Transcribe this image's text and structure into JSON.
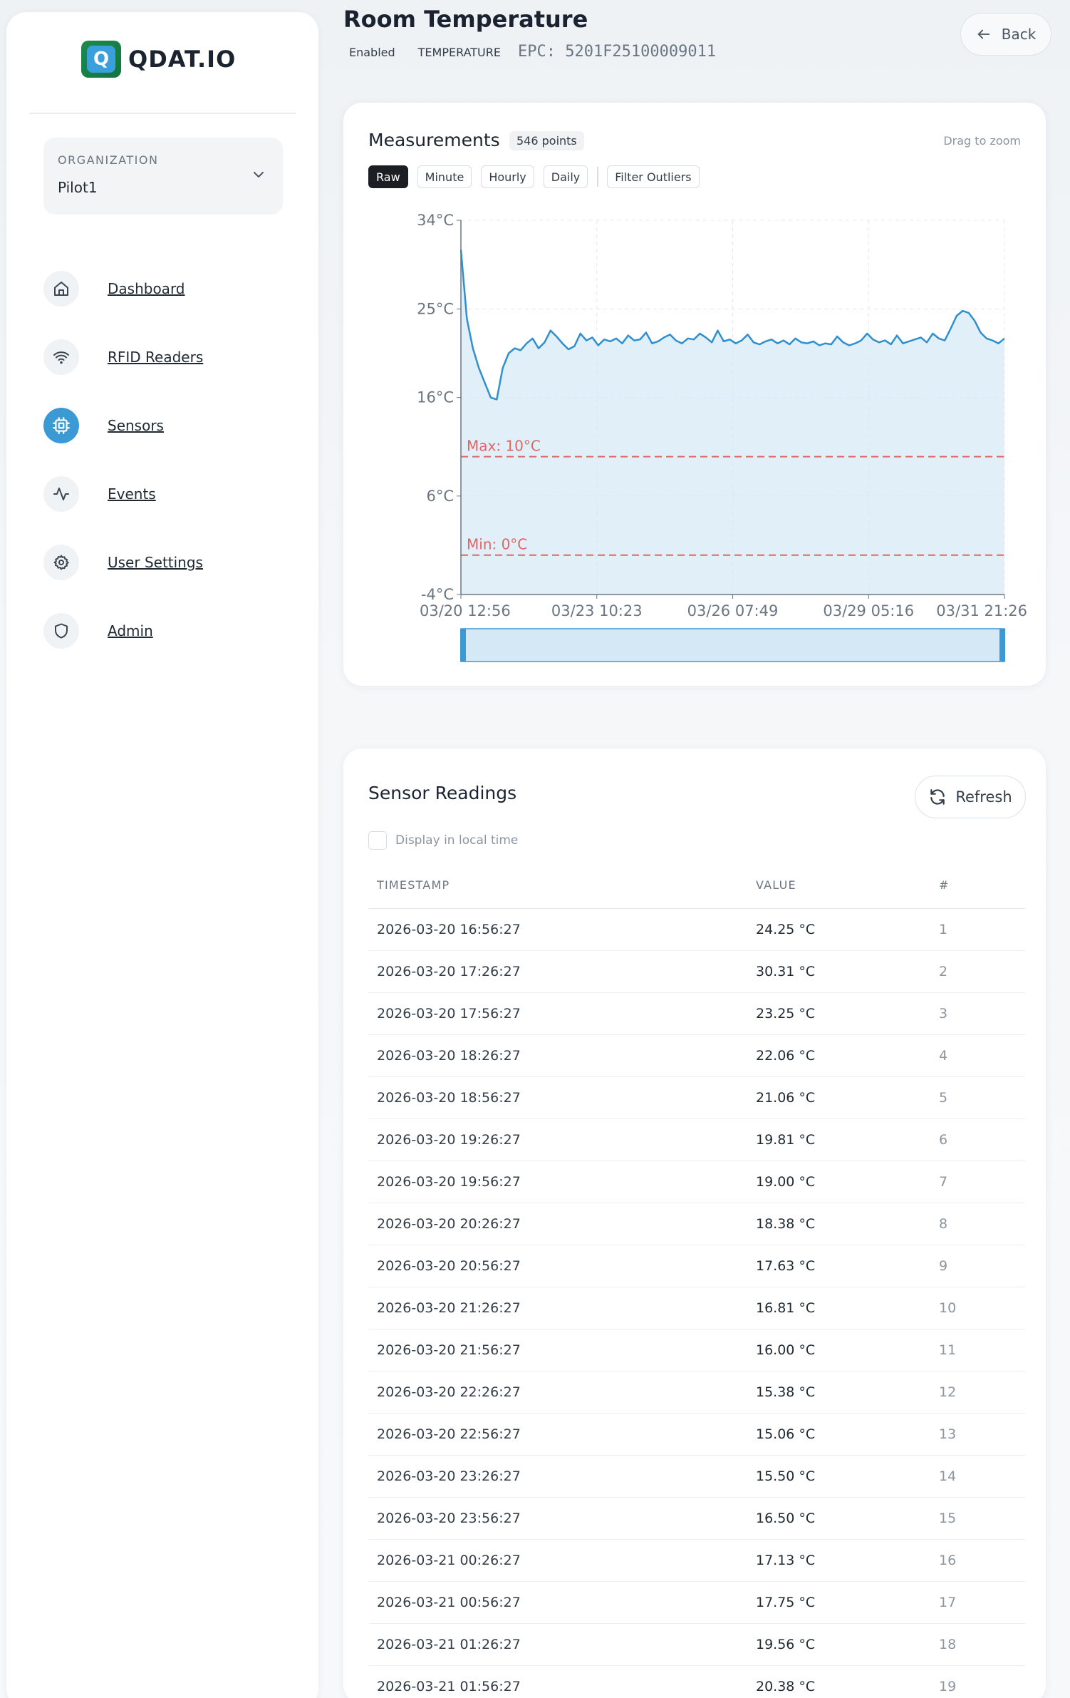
{
  "brand": {
    "name": "QDAT.IO",
    "logo_letter": "Q"
  },
  "organization": {
    "label": "ORGANIZATION",
    "value": "Pilot1"
  },
  "nav": [
    {
      "label": "Dashboard",
      "icon": "home-icon",
      "active": false
    },
    {
      "label": "RFID Readers",
      "icon": "wifi-icon",
      "active": false
    },
    {
      "label": "Sensors",
      "icon": "chip-icon",
      "active": true
    },
    {
      "label": "Events",
      "icon": "activity-icon",
      "active": false
    },
    {
      "label": "User Settings",
      "icon": "gear-icon",
      "active": false
    },
    {
      "label": "Admin",
      "icon": "shield-icon",
      "active": false
    }
  ],
  "header": {
    "title": "Room Temperature",
    "status": "Enabled",
    "type": "TEMPERATURE",
    "epc": "EPC: 5201F25100009011",
    "back_label": "Back"
  },
  "measurements": {
    "title": "Measurements",
    "points_badge": "546 points",
    "drag_hint": "Drag to zoom",
    "resolutions": [
      "Raw",
      "Minute",
      "Hourly",
      "Daily"
    ],
    "active_resolution": "Raw",
    "filter_label": "Filter Outliers"
  },
  "chart_data": {
    "type": "area",
    "x_labels": [
      "03/20 12:56",
      "03/23 10:23",
      "03/26 07:49",
      "03/29 05:16",
      "03/31 21:26"
    ],
    "y_ticks": [
      "34°C",
      "25°C",
      "16°C",
      "6°C",
      "-4°C"
    ],
    "ylim": [
      -4,
      34
    ],
    "thresholds": [
      {
        "label": "Max: 10°C",
        "value": 10
      },
      {
        "label": "Min: 0°C",
        "value": 0
      }
    ],
    "series": [
      {
        "values": [
          31,
          24,
          21,
          19,
          17.5,
          16,
          15.8,
          19,
          20.5,
          21,
          20.8,
          21.5,
          22,
          21,
          21.6,
          22.8,
          22.2,
          21.5,
          20.9,
          21.2,
          22.5,
          21.8,
          22.1,
          21.3,
          21.9,
          21.7,
          22,
          21.5,
          22.3,
          21.8,
          21.9,
          22.6,
          21.5,
          21.7,
          22.1,
          22.4,
          21.8,
          21.5,
          22,
          21.9,
          22.5,
          22.1,
          21.6,
          22.8,
          21.7,
          21.9,
          21.5,
          21.8,
          22.4,
          21.6,
          21.4,
          21.7,
          21.9,
          21.5,
          21.8,
          21.4,
          22,
          21.6,
          21.5,
          21.7,
          21.3,
          21.5,
          21.4,
          22.2,
          21.6,
          21.3,
          21.5,
          21.8,
          22.5,
          21.9,
          21.6,
          21.8,
          21.4,
          22.3,
          21.5,
          21.7,
          21.9,
          22.1,
          21.6,
          22.5,
          22,
          21.8,
          23,
          24.3,
          24.8,
          24.6,
          23.8,
          22.6,
          22,
          21.8,
          21.5,
          22
        ]
      }
    ]
  },
  "readings": {
    "title": "Sensor Readings",
    "refresh_label": "Refresh",
    "local_time_label": "Display in local time",
    "columns": [
      "TIMESTAMP",
      "VALUE",
      "#"
    ],
    "rows": [
      [
        "2026-03-20 16:56:27",
        "24.25 °C",
        "1"
      ],
      [
        "2026-03-20 17:26:27",
        "30.31 °C",
        "2"
      ],
      [
        "2026-03-20 17:56:27",
        "23.25 °C",
        "3"
      ],
      [
        "2026-03-20 18:26:27",
        "22.06 °C",
        "4"
      ],
      [
        "2026-03-20 18:56:27",
        "21.06 °C",
        "5"
      ],
      [
        "2026-03-20 19:26:27",
        "19.81 °C",
        "6"
      ],
      [
        "2026-03-20 19:56:27",
        "19.00 °C",
        "7"
      ],
      [
        "2026-03-20 20:26:27",
        "18.38 °C",
        "8"
      ],
      [
        "2026-03-20 20:56:27",
        "17.63 °C",
        "9"
      ],
      [
        "2026-03-20 21:26:27",
        "16.81 °C",
        "10"
      ],
      [
        "2026-03-20 21:56:27",
        "16.00 °C",
        "11"
      ],
      [
        "2026-03-20 22:26:27",
        "15.38 °C",
        "12"
      ],
      [
        "2026-03-20 22:56:27",
        "15.06 °C",
        "13"
      ],
      [
        "2026-03-20 23:26:27",
        "15.50 °C",
        "14"
      ],
      [
        "2026-03-20 23:56:27",
        "16.50 °C",
        "15"
      ],
      [
        "2026-03-21 00:26:27",
        "17.13 °C",
        "16"
      ],
      [
        "2026-03-21 00:56:27",
        "17.75 °C",
        "17"
      ],
      [
        "2026-03-21 01:26:27",
        "19.56 °C",
        "18"
      ],
      [
        "2026-03-21 01:56:27",
        "20.38 °C",
        "19"
      ]
    ]
  },
  "colors": {
    "accent": "#3b9ad4",
    "line": "#2f8fcf",
    "threshold": "#e06666",
    "area": "#d6e9f6"
  }
}
